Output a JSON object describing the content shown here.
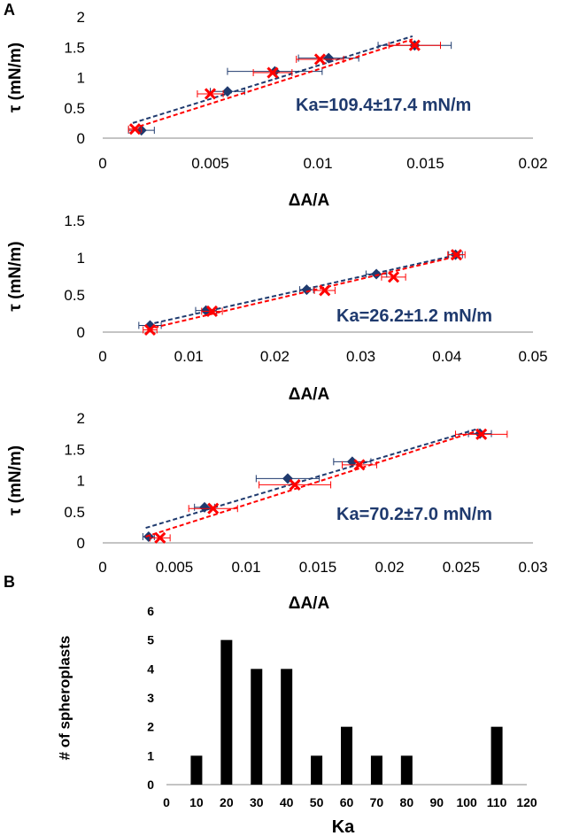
{
  "colors": {
    "blue_series": "#1F3A6E",
    "red_series": "#FF0000",
    "annotation": "#1F3A6E",
    "bars": "#000000",
    "axis": "#888888"
  },
  "panels": {
    "a_label": "A",
    "b_label": "B"
  },
  "chart_data": [
    {
      "type": "scatter",
      "title": "",
      "xlabel": "ΔA/A",
      "ylabel": "τ (mN/m)",
      "xlim": [
        0,
        0.02
      ],
      "ylim": [
        0,
        2
      ],
      "xticks": [
        "0",
        "0.005",
        "0.01",
        "0.015",
        "0.02"
      ],
      "yticks": [
        "0",
        "0.5",
        "1",
        "1.5",
        "2"
      ],
      "annotation": "Ka=109.4±17.4 mN/m",
      "series": [
        {
          "marker": "diamond",
          "color": "#1F3A6E",
          "x": [
            0.0018,
            0.0058,
            0.008,
            0.0105,
            0.0145
          ],
          "y": [
            0.13,
            0.77,
            1.1,
            1.32,
            1.53
          ],
          "xerr": [
            0.0006,
            0.0008,
            0.0022,
            0.0014,
            0.0017
          ],
          "fit": [
            [
              0.0014,
              0.25
            ],
            [
              0.0144,
              1.68
            ]
          ]
        },
        {
          "marker": "x",
          "color": "#FF0000",
          "x": [
            0.0015,
            0.005,
            0.0079,
            0.0101,
            0.0145
          ],
          "y": [
            0.15,
            0.73,
            1.08,
            1.3,
            1.53
          ],
          "xerr": [
            0.0003,
            0.0006,
            0.0009,
            0.0011,
            0.0012
          ],
          "fit": [
            [
              0.0014,
              0.16
            ],
            [
              0.0144,
              1.63
            ]
          ]
        }
      ]
    },
    {
      "type": "scatter",
      "title": "",
      "xlabel": "ΔA/A",
      "ylabel": "τ (mN/m)",
      "xlim": [
        0,
        0.05
      ],
      "ylim": [
        0,
        1.5
      ],
      "xticks": [
        "0",
        "0.01",
        "0.02",
        "0.03",
        "0.04",
        "0.05"
      ],
      "yticks": [
        "0",
        "0.5",
        "1",
        "1.5"
      ],
      "annotation": "Ka=26.2±1.2 mN/m",
      "series": [
        {
          "marker": "diamond",
          "color": "#1F3A6E",
          "x": [
            0.0055,
            0.012,
            0.0237,
            0.0318,
            0.041
          ],
          "y": [
            0.09,
            0.29,
            0.57,
            0.78,
            1.04
          ],
          "xerr": [
            0.0013,
            0.0012,
            0.0008,
            0.0012,
            0.0008
          ],
          "fit": [
            [
              0.0052,
              0.1
            ],
            [
              0.0405,
              1.02
            ]
          ]
        },
        {
          "marker": "x",
          "color": "#FF0000",
          "x": [
            0.0055,
            0.0127,
            0.0258,
            0.0338,
            0.0411
          ],
          "y": [
            0.03,
            0.28,
            0.56,
            0.74,
            1.04
          ],
          "xerr": [
            0.0008,
            0.0012,
            0.0012,
            0.0014,
            0.001
          ],
          "fit": [
            [
              0.0052,
              0.04
            ],
            [
              0.0405,
              1.0
            ]
          ]
        }
      ]
    },
    {
      "type": "scatter",
      "title": "",
      "xlabel": "ΔA/A",
      "ylabel": "τ (mN/m)",
      "xlim": [
        0,
        0.03
      ],
      "ylim": [
        0,
        2
      ],
      "xticks": [
        "0",
        "0.005",
        "0.01",
        "0.015",
        "0.02",
        "0.025",
        "0.03"
      ],
      "yticks": [
        "0",
        "0.5",
        "1",
        "1.5",
        "2"
      ],
      "annotation": "Ka=70.2±7.0 mN/m",
      "series": [
        {
          "marker": "diamond",
          "color": "#1F3A6E",
          "x": [
            0.0032,
            0.0071,
            0.0129,
            0.0174,
            0.0263
          ],
          "y": [
            0.1,
            0.57,
            1.03,
            1.3,
            1.75
          ],
          "xerr": [
            0.0004,
            0.0007,
            0.0022,
            0.0013,
            0.0008
          ],
          "fit": [
            [
              0.003,
              0.24
            ],
            [
              0.0262,
              1.83
            ]
          ]
        },
        {
          "marker": "x",
          "color": "#FF0000",
          "x": [
            0.004,
            0.0077,
            0.0134,
            0.0179,
            0.0264
          ],
          "y": [
            0.08,
            0.55,
            0.93,
            1.25,
            1.74
          ],
          "xerr": [
            0.0007,
            0.0017,
            0.0025,
            0.0012,
            0.0018
          ],
          "fit": [
            [
              0.003,
              0.1
            ],
            [
              0.0262,
              1.8
            ]
          ]
        }
      ]
    },
    {
      "type": "bar",
      "title": "",
      "xlabel": "Ka",
      "ylabel": "# of spheroplasts",
      "categories": [
        "0",
        "10",
        "20",
        "30",
        "40",
        "50",
        "60",
        "70",
        "80",
        "90",
        "100",
        "110",
        "120"
      ],
      "values": [
        0,
        1,
        5,
        4,
        4,
        1,
        2,
        1,
        1,
        0,
        0,
        2,
        0
      ],
      "ylim": [
        0,
        6
      ],
      "yticks": [
        "0",
        "1",
        "2",
        "3",
        "4",
        "5",
        "6"
      ],
      "xticks": [
        "0",
        "10",
        "20",
        "30",
        "40",
        "50",
        "60",
        "70",
        "80",
        "90",
        "100",
        "110",
        "120"
      ]
    }
  ]
}
